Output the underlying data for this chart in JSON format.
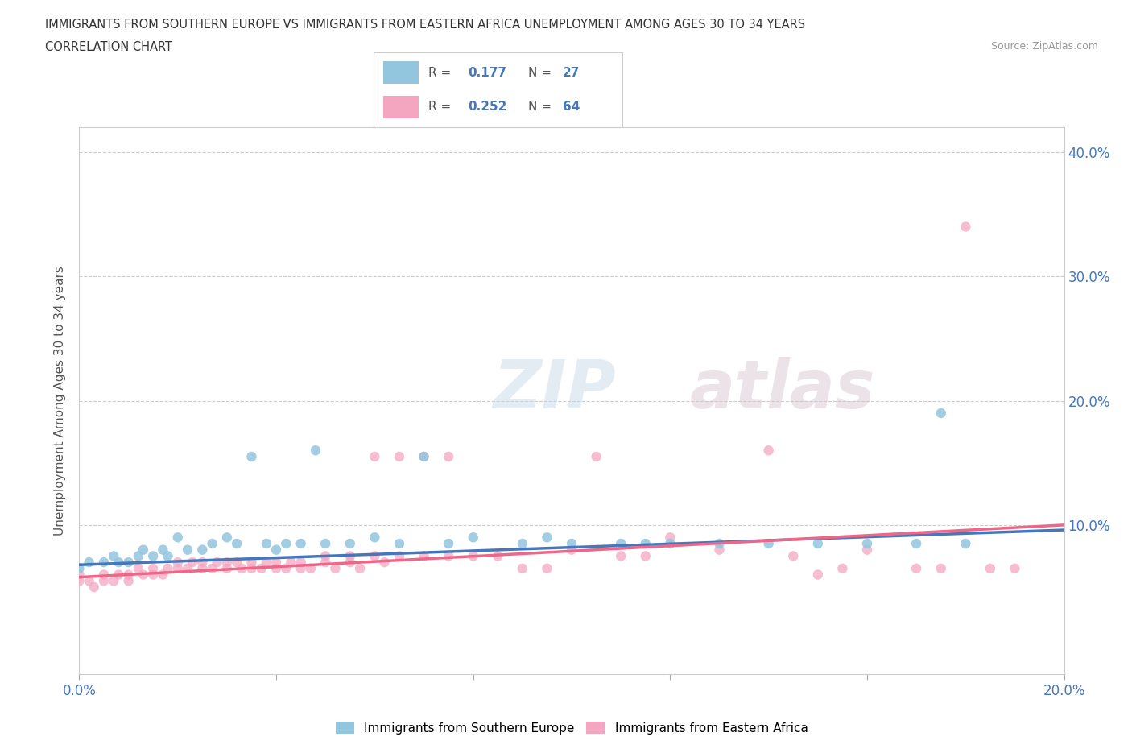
{
  "title_line1": "IMMIGRANTS FROM SOUTHERN EUROPE VS IMMIGRANTS FROM EASTERN AFRICA UNEMPLOYMENT AMONG AGES 30 TO 34 YEARS",
  "title_line2": "CORRELATION CHART",
  "source_text": "Source: ZipAtlas.com",
  "ylabel": "Unemployment Among Ages 30 to 34 years",
  "xlim": [
    0.0,
    0.2
  ],
  "ylim": [
    -0.02,
    0.42
  ],
  "x_ticks": [
    0.0,
    0.04,
    0.08,
    0.12,
    0.16,
    0.2
  ],
  "y_ticks_right": [
    0.1,
    0.2,
    0.3,
    0.4
  ],
  "y_tick_labels_right": [
    "10.0%",
    "20.0%",
    "30.0%",
    "40.0%"
  ],
  "blue_color": "#92c5de",
  "pink_color": "#f4a6c0",
  "blue_line_color": "#4477bb",
  "pink_line_color": "#ee6688",
  "watermark_zip": "ZIP",
  "watermark_atlas": "atlas",
  "background_color": "#ffffff",
  "blue_scatter_x": [
    0.0,
    0.002,
    0.005,
    0.007,
    0.008,
    0.01,
    0.012,
    0.013,
    0.015,
    0.017,
    0.018,
    0.02,
    0.022,
    0.025,
    0.027,
    0.03,
    0.032,
    0.035,
    0.038,
    0.04,
    0.042,
    0.045,
    0.048,
    0.05,
    0.055,
    0.06,
    0.065,
    0.07,
    0.075,
    0.08,
    0.09,
    0.095,
    0.1,
    0.11,
    0.115,
    0.12,
    0.13,
    0.14,
    0.15,
    0.16,
    0.17,
    0.175,
    0.18
  ],
  "blue_scatter_y": [
    0.065,
    0.07,
    0.07,
    0.075,
    0.07,
    0.07,
    0.075,
    0.08,
    0.075,
    0.08,
    0.075,
    0.09,
    0.08,
    0.08,
    0.085,
    0.09,
    0.085,
    0.155,
    0.085,
    0.08,
    0.085,
    0.085,
    0.16,
    0.085,
    0.085,
    0.09,
    0.085,
    0.155,
    0.085,
    0.09,
    0.085,
    0.09,
    0.085,
    0.085,
    0.085,
    0.085,
    0.085,
    0.085,
    0.085,
    0.085,
    0.085,
    0.19,
    0.085
  ],
  "pink_scatter_x": [
    0.0,
    0.0,
    0.002,
    0.003,
    0.005,
    0.005,
    0.007,
    0.008,
    0.01,
    0.01,
    0.012,
    0.013,
    0.015,
    0.015,
    0.017,
    0.018,
    0.02,
    0.02,
    0.022,
    0.023,
    0.025,
    0.025,
    0.027,
    0.028,
    0.03,
    0.03,
    0.032,
    0.033,
    0.035,
    0.035,
    0.037,
    0.038,
    0.04,
    0.04,
    0.042,
    0.043,
    0.045,
    0.045,
    0.047,
    0.05,
    0.05,
    0.052,
    0.055,
    0.055,
    0.057,
    0.06,
    0.06,
    0.062,
    0.065,
    0.065,
    0.07,
    0.07,
    0.075,
    0.075,
    0.08,
    0.085,
    0.09,
    0.095,
    0.1,
    0.105,
    0.11,
    0.115,
    0.12,
    0.13,
    0.14,
    0.145,
    0.15,
    0.155,
    0.16,
    0.17,
    0.175,
    0.18,
    0.185,
    0.19
  ],
  "pink_scatter_y": [
    0.06,
    0.055,
    0.055,
    0.05,
    0.055,
    0.06,
    0.055,
    0.06,
    0.055,
    0.06,
    0.065,
    0.06,
    0.06,
    0.065,
    0.06,
    0.065,
    0.065,
    0.07,
    0.065,
    0.07,
    0.065,
    0.07,
    0.065,
    0.07,
    0.065,
    0.07,
    0.07,
    0.065,
    0.07,
    0.065,
    0.065,
    0.07,
    0.065,
    0.07,
    0.065,
    0.07,
    0.065,
    0.07,
    0.065,
    0.075,
    0.07,
    0.065,
    0.075,
    0.07,
    0.065,
    0.075,
    0.155,
    0.07,
    0.075,
    0.155,
    0.075,
    0.155,
    0.075,
    0.155,
    0.075,
    0.075,
    0.065,
    0.065,
    0.08,
    0.155,
    0.075,
    0.075,
    0.09,
    0.08,
    0.16,
    0.075,
    0.06,
    0.065,
    0.08,
    0.065,
    0.065,
    0.34,
    0.065,
    0.065
  ],
  "blue_trendline_x": [
    0.0,
    0.2
  ],
  "blue_trendline_y": [
    0.068,
    0.096
  ],
  "pink_trendline_x": [
    0.0,
    0.2
  ],
  "pink_trendline_y": [
    0.058,
    0.1
  ]
}
